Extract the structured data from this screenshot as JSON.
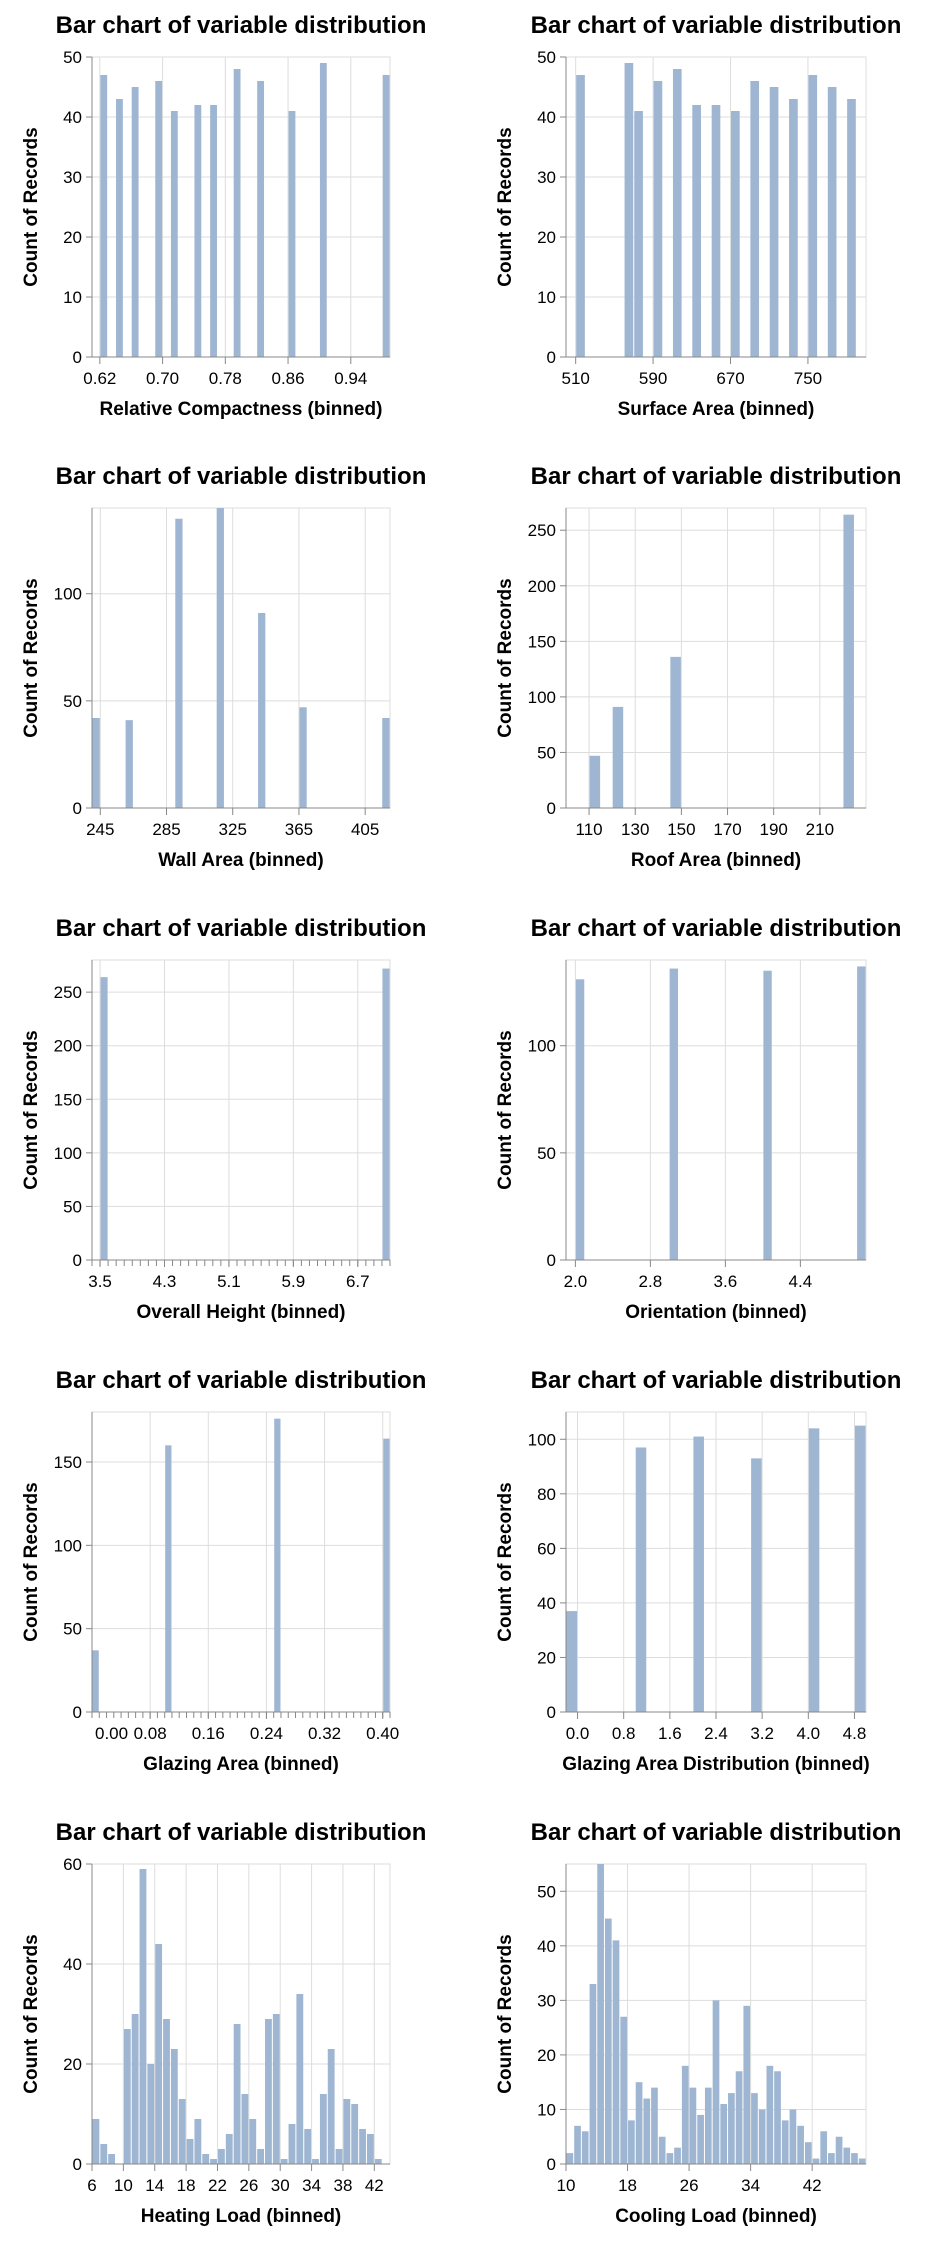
{
  "chart_data": [
    {
      "type": "bar",
      "title": "Bar chart of variable distribution",
      "xlabel": "Relative Compactness (binned)",
      "ylabel": "Count of Records",
      "bin_width": 0.01,
      "xlim": [
        0.61,
        0.99
      ],
      "ylim": [
        0,
        50
      ],
      "xticks": [
        0.62,
        0.7,
        0.78,
        0.86,
        0.94
      ],
      "xtick_labels": [
        "0.62",
        "0.70",
        "0.78",
        "0.86",
        "0.94"
      ],
      "yticks": [
        0,
        10,
        20,
        30,
        40,
        50
      ],
      "x": [
        0.62,
        0.64,
        0.66,
        0.69,
        0.71,
        0.74,
        0.76,
        0.79,
        0.82,
        0.86,
        0.9,
        0.98
      ],
      "values": [
        47,
        43,
        45,
        46,
        41,
        42,
        42,
        48,
        46,
        41,
        49,
        47
      ],
      "grid": true,
      "color": "#9fb6d3"
    },
    {
      "type": "bar",
      "title": "Bar chart of variable distribution",
      "xlabel": "Surface Area (binned)",
      "ylabel": "Count of Records",
      "bin_width": 10,
      "xlim": [
        500,
        810
      ],
      "ylim": [
        0,
        50
      ],
      "xticks": [
        510,
        590,
        670,
        750
      ],
      "xtick_labels": [
        "510",
        "590",
        "670",
        "750"
      ],
      "yticks": [
        0,
        10,
        20,
        30,
        40,
        50
      ],
      "x": [
        510,
        560,
        570,
        590,
        610,
        630,
        650,
        670,
        690,
        710,
        730,
        750,
        770,
        790
      ],
      "values": [
        47,
        49,
        41,
        46,
        48,
        42,
        42,
        41,
        46,
        45,
        43,
        47,
        45,
        43
      ],
      "grid": true,
      "color": "#9fb6d3"
    },
    {
      "type": "bar",
      "title": "Bar chart of variable distribution",
      "xlabel": "Wall Area (binned)",
      "ylabel": "Count of Records",
      "bin_width": 5,
      "xlim": [
        240,
        420
      ],
      "ylim": [
        0,
        140
      ],
      "xticks": [
        245,
        285,
        325,
        365,
        405
      ],
      "xtick_labels": [
        "245",
        "285",
        "325",
        "365",
        "405"
      ],
      "yticks": [
        0,
        50,
        100
      ],
      "x": [
        240,
        260,
        290,
        315,
        340,
        365,
        415
      ],
      "values": [
        42,
        41,
        135,
        140,
        91,
        47,
        42
      ],
      "grid": true,
      "color": "#9fb6d3"
    },
    {
      "type": "bar",
      "title": "Bar chart of variable distribution",
      "xlabel": "Roof Area (binned)",
      "ylabel": "Count of Records",
      "bin_width": 5,
      "xlim": [
        100,
        230
      ],
      "ylim": [
        0,
        270
      ],
      "xticks": [
        110,
        130,
        150,
        170,
        190,
        210
      ],
      "xtick_labels": [
        "110",
        "130",
        "150",
        "170",
        "190",
        "210"
      ],
      "yticks": [
        0,
        50,
        100,
        150,
        200,
        250
      ],
      "x": [
        110,
        120,
        145,
        220
      ],
      "values": [
        47,
        91,
        136,
        264
      ],
      "grid": true,
      "color": "#9fb6d3"
    },
    {
      "type": "bar",
      "title": "Bar chart of variable distribution",
      "xlabel": "Overall Height (binned)",
      "ylabel": "Count of Records",
      "bin_width": 0.1,
      "xlim": [
        3.4,
        7.1
      ],
      "ylim": [
        0,
        280
      ],
      "xticks": [
        3.5,
        4.3,
        5.1,
        5.9,
        6.7
      ],
      "xtick_labels": [
        "3.5",
        "4.3",
        "5.1",
        "5.9",
        "6.7"
      ],
      "yticks": [
        0,
        50,
        100,
        150,
        200,
        250
      ],
      "minor_ticks": true,
      "x": [
        3.5,
        7.0
      ],
      "values": [
        264,
        272
      ],
      "grid": true,
      "color": "#9fb6d3"
    },
    {
      "type": "bar",
      "title": "Bar chart of variable distribution",
      "xlabel": "Orientation (binned)",
      "ylabel": "Count of Records",
      "bin_width": 0.1,
      "xlim": [
        1.9,
        5.1
      ],
      "ylim": [
        0,
        140
      ],
      "xticks": [
        2.0,
        2.8,
        3.6,
        4.4
      ],
      "xtick_labels": [
        "2.0",
        "2.8",
        "3.6",
        "4.4"
      ],
      "yticks": [
        0,
        50,
        100
      ],
      "x": [
        2.0,
        3.0,
        4.0,
        5.0
      ],
      "values": [
        131,
        136,
        135,
        137
      ],
      "grid": true,
      "color": "#9fb6d3"
    },
    {
      "type": "bar",
      "title": "Bar chart of variable distribution",
      "xlabel": "Glazing Area (binned)",
      "ylabel": "Count of Records",
      "bin_width": 0.01,
      "xlim": [
        0,
        0.41
      ],
      "ylim": [
        0,
        180
      ],
      "xticks": [
        0.08,
        0.16,
        0.24,
        0.32,
        0.4
      ],
      "xtick_labels": [
        "0.08",
        "0.16",
        "0.24",
        "0.32",
        "0.40"
      ],
      "extra_tick_label": "0.00",
      "yticks": [
        0,
        50,
        100,
        150
      ],
      "minor_ticks": true,
      "x": [
        0.0,
        0.1,
        0.25,
        0.4
      ],
      "values": [
        37,
        160,
        176,
        164
      ],
      "grid": true,
      "color": "#9fb6d3"
    },
    {
      "type": "bar",
      "title": "Bar chart of variable distribution",
      "xlabel": "Glazing Area Distribution (binned)",
      "ylabel": "Count of Records",
      "bin_width": 0.2,
      "xlim": [
        -0.2,
        5.0
      ],
      "ylim": [
        0,
        110
      ],
      "xticks": [
        0.0,
        0.8,
        1.6,
        2.4,
        3.2,
        4.0,
        4.8
      ],
      "xtick_labels": [
        "0.0",
        "0.8",
        "1.6",
        "2.4",
        "3.2",
        "4.0",
        "4.8"
      ],
      "yticks": [
        0,
        20,
        40,
        60,
        80,
        100
      ],
      "x": [
        -0.2,
        1.0,
        2.0,
        3.0,
        4.0,
        4.8
      ],
      "values": [
        37,
        97,
        101,
        93,
        104,
        105
      ],
      "grid": true,
      "color": "#9fb6d3"
    },
    {
      "type": "bar",
      "title": "Bar chart of variable distribution",
      "xlabel": "Heating Load (binned)",
      "ylabel": "Count of Records",
      "bin_width": 1,
      "xlim": [
        6,
        44
      ],
      "ylim": [
        0,
        60
      ],
      "xticks": [
        6,
        10,
        14,
        18,
        22,
        26,
        30,
        34,
        38,
        42
      ],
      "xtick_labels": [
        "6",
        "10",
        "14",
        "18",
        "22",
        "26",
        "30",
        "34",
        "38",
        "42"
      ],
      "yticks": [
        0,
        20,
        40,
        60
      ],
      "x": [
        6,
        7,
        8,
        10,
        11,
        12,
        13,
        14,
        15,
        16,
        17,
        18,
        19,
        20,
        21,
        22,
        23,
        24,
        25,
        26,
        27,
        28,
        29,
        30,
        31,
        32,
        33,
        34,
        35,
        36,
        37,
        38,
        39,
        40,
        41,
        42,
        43
      ],
      "values": [
        9,
        4,
        2,
        27,
        30,
        59,
        20,
        44,
        29,
        23,
        13,
        5,
        9,
        2,
        1,
        3,
        6,
        28,
        14,
        9,
        3,
        29,
        30,
        1,
        8,
        34,
        7,
        1,
        14,
        23,
        3,
        13,
        12,
        7,
        6,
        1,
        0
      ],
      "grid": true,
      "color": "#9fb6d3"
    },
    {
      "type": "bar",
      "title": "Bar chart of variable distribution",
      "xlabel": "Cooling Load (binned)",
      "ylabel": "Count of Records",
      "bin_width": 1,
      "xlim": [
        10,
        49
      ],
      "ylim": [
        0,
        55
      ],
      "xticks": [
        10,
        18,
        26,
        34,
        42
      ],
      "xtick_labels": [
        "10",
        "18",
        "26",
        "34",
        "42"
      ],
      "yticks": [
        0,
        10,
        20,
        30,
        40,
        50
      ],
      "x": [
        10,
        11,
        12,
        13,
        14,
        15,
        16,
        17,
        18,
        19,
        20,
        21,
        22,
        23,
        24,
        25,
        26,
        27,
        28,
        29,
        30,
        31,
        32,
        33,
        34,
        35,
        36,
        37,
        38,
        39,
        40,
        41,
        42,
        43,
        44,
        45,
        46,
        47,
        48
      ],
      "values": [
        2,
        7,
        6,
        33,
        55,
        45,
        41,
        27,
        8,
        15,
        12,
        14,
        5,
        2,
        3,
        18,
        14,
        9,
        14,
        30,
        11,
        13,
        17,
        29,
        13,
        10,
        18,
        17,
        8,
        10,
        7,
        4,
        1,
        6,
        2,
        5,
        3,
        2,
        1
      ],
      "grid": true,
      "color": "#9fb6d3"
    }
  ]
}
